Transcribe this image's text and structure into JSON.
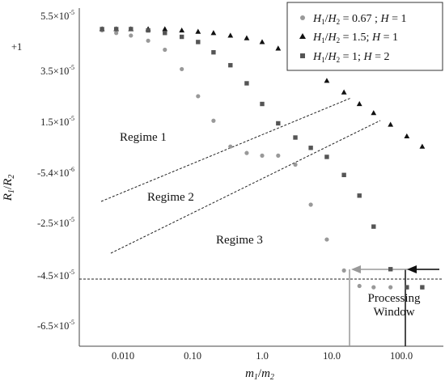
{
  "chart_data": {
    "type": "scatter",
    "xscale": "log",
    "xlim": [
      0.003,
      300
    ],
    "ylim": [
      -6.5e-05,
      5.5e-05
    ],
    "y_offset_label": "+1",
    "xlabel": "m1/m2",
    "ylabel": "R1/R2",
    "x_tick_labels": [
      "0.010",
      "0.10",
      "1.0",
      "10.0",
      "100.0"
    ],
    "y_tick_labels": [
      "5.5×10-5",
      "3.5×10-5",
      "1.5×10-5",
      "-5.4×10-6",
      "-2.5×10-5",
      "-4.5×10-5",
      "-6.5×10-5"
    ],
    "grid": false,
    "legend_position": "top-right",
    "series": [
      {
        "name": "H1/H2 = 0.67 ; H = 1",
        "marker": "circle",
        "color": "#999999",
        "x": [
          0.005,
          0.008,
          0.013,
          0.023,
          0.04,
          0.07,
          0.12,
          0.2,
          0.35,
          0.6,
          1.0,
          1.7,
          3.0,
          5.0,
          8.5,
          15,
          25,
          40,
          70,
          120,
          200
        ],
        "y": [
          4.95e-05,
          4.85e-05,
          4.75e-05,
          4.55e-05,
          4.2e-05,
          3.45e-05,
          2.4e-05,
          1.45e-05,
          4.5e-06,
          2e-06,
          1e-06,
          1e-06,
          -2.5e-06,
          -1.8e-05,
          -3.15e-05,
          -4.35e-05,
          -4.95e-05,
          -5e-05,
          -5e-05,
          -5e-05,
          -5e-05
        ]
      },
      {
        "name": "H1/H2 = 1.5; H = 1",
        "marker": "triangle",
        "color": "#111111",
        "x": [
          0.005,
          0.008,
          0.013,
          0.023,
          0.04,
          0.07,
          0.12,
          0.2,
          0.35,
          0.6,
          1.0,
          1.7,
          3.0,
          5.0,
          8.5,
          15,
          25,
          40,
          70,
          120,
          200
        ],
        "y": [
          5e-05,
          5e-05,
          5e-05,
          5e-05,
          5e-05,
          4.95e-05,
          4.9e-05,
          4.85e-05,
          4.75e-05,
          4.65e-05,
          4.5e-05,
          4.25e-05,
          3.95e-05,
          3.5e-05,
          3e-05,
          2.55e-05,
          2.1e-05,
          1.75e-05,
          1.3e-05,
          8.5e-06,
          4.5e-06
        ]
      },
      {
        "name": "H1/H2 = 1; H = 2",
        "marker": "square",
        "color": "#555555",
        "x": [
          0.005,
          0.008,
          0.013,
          0.023,
          0.04,
          0.07,
          0.12,
          0.2,
          0.35,
          0.6,
          1.0,
          1.7,
          3.0,
          5.0,
          8.5,
          15,
          25,
          40,
          70,
          120,
          200
        ],
        "y": [
          5e-05,
          5e-05,
          5e-05,
          4.95e-05,
          4.85e-05,
          4.7e-05,
          4.5e-05,
          4.1e-05,
          3.6e-05,
          2.9e-05,
          2.1e-05,
          1.35e-05,
          8e-06,
          4e-06,
          5e-07,
          -6.5e-06,
          -1.45e-05,
          -2.65e-05,
          -4.3e-05,
          -5e-05,
          -5e-05
        ]
      }
    ],
    "annotations": [
      {
        "text": "Regime 1",
        "x": 0.35,
        "y": 8e-06
      },
      {
        "text": "Regime 2",
        "x": 0.12,
        "y": -1.35e-05
      },
      {
        "text": "Regime 3",
        "x": 0.5,
        "y": -3.25e-05
      },
      {
        "text": "Processing Window",
        "x": 100,
        "y": -5.8e-05
      }
    ],
    "threshold_y": -4.75e-05,
    "window_lines_x": [
      18,
      120
    ]
  }
}
